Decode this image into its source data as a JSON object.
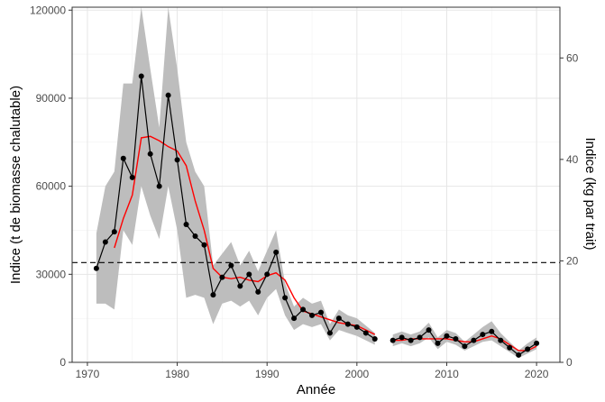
{
  "chart_data": {
    "type": "line",
    "xlabel": "Année",
    "ylabel": "Indice (t de biomasse chalutable)",
    "y2label": "Indice (kg par trait)",
    "xlim": [
      1968.3,
      2022.6
    ],
    "ylim": [
      0,
      121000
    ],
    "y2lim": [
      0,
      70
    ],
    "x_ticks": [
      "1970",
      "1980",
      "1990",
      "2000",
      "2010",
      "2020"
    ],
    "y_ticks": [
      "0",
      "30000",
      "60000",
      "90000",
      "120000"
    ],
    "y2_ticks": [
      "0",
      "20",
      "40",
      "60"
    ],
    "grid": true,
    "reference_line_y": 34000,
    "series": [
      {
        "type": "line-points",
        "color": "#000000",
        "segments": [
          [
            [
              1971,
              32000
            ],
            [
              1972,
              41000
            ],
            [
              1973,
              44500
            ],
            [
              1974,
              69500
            ],
            [
              1975,
              63000
            ],
            [
              1976,
              97500
            ],
            [
              1977,
              71000
            ],
            [
              1978,
              60000
            ],
            [
              1979,
              91000
            ],
            [
              1980,
              69000
            ],
            [
              1981,
              47000
            ],
            [
              1982,
              43000
            ],
            [
              1983,
              40000
            ],
            [
              1984,
              23000
            ],
            [
              1985,
              29000
            ],
            [
              1986,
              33000
            ],
            [
              1987,
              26000
            ],
            [
              1988,
              30000
            ],
            [
              1989,
              24000
            ],
            [
              1990,
              30000
            ],
            [
              1991,
              37500
            ],
            [
              1992,
              22000
            ],
            [
              1993,
              15000
            ],
            [
              1994,
              18000
            ],
            [
              1995,
              16000
            ],
            [
              1996,
              17000
            ],
            [
              1997,
              10000
            ],
            [
              1998,
              15000
            ],
            [
              1999,
              13000
            ],
            [
              2000,
              12000
            ],
            [
              2001,
              10000
            ],
            [
              2002,
              8000
            ]
          ],
          [
            [
              2004,
              7500
            ],
            [
              2005,
              8500
            ],
            [
              2006,
              7500
            ],
            [
              2007,
              8500
            ],
            [
              2008,
              11000
            ],
            [
              2009,
              6500
            ],
            [
              2010,
              9000
            ],
            [
              2011,
              8000
            ],
            [
              2012,
              5500
            ],
            [
              2013,
              7500
            ],
            [
              2014,
              9500
            ],
            [
              2015,
              10500
            ],
            [
              2016,
              7500
            ],
            [
              2017,
              5000
            ],
            [
              2018,
              2500
            ],
            [
              2019,
              4500
            ],
            [
              2020,
              6500
            ]
          ]
        ]
      },
      {
        "type": "smooth",
        "color": "#ff0000",
        "segments": [
          [
            [
              1973,
              39000
            ],
            [
              1974,
              49000
            ],
            [
              1975,
              57000
            ],
            [
              1976,
              76500
            ],
            [
              1977,
              77000
            ],
            [
              1978,
              75500
            ],
            [
              1979,
              73500
            ],
            [
              1980,
              72000
            ],
            [
              1981,
              67000
            ],
            [
              1982,
              55000
            ],
            [
              1983,
              45000
            ],
            [
              1984,
              32000
            ],
            [
              1985,
              29000
            ],
            [
              1986,
              28500
            ],
            [
              1987,
              29000
            ],
            [
              1988,
              28000
            ],
            [
              1989,
              27500
            ],
            [
              1990,
              29500
            ],
            [
              1991,
              30500
            ],
            [
              1992,
              28000
            ],
            [
              1993,
              22000
            ],
            [
              1994,
              17500
            ],
            [
              1995,
              16500
            ],
            [
              1996,
              15500
            ],
            [
              1997,
              14500
            ],
            [
              1998,
              13500
            ],
            [
              1999,
              13000
            ],
            [
              2000,
              12500
            ],
            [
              2001,
              11000
            ],
            [
              2002,
              9500
            ]
          ],
          [
            [
              2004,
              7500
            ],
            [
              2005,
              7500
            ],
            [
              2006,
              8000
            ],
            [
              2007,
              8000
            ],
            [
              2008,
              8000
            ],
            [
              2009,
              8000
            ],
            [
              2010,
              8000
            ],
            [
              2011,
              7500
            ],
            [
              2012,
              7000
            ],
            [
              2013,
              7000
            ],
            [
              2014,
              8000
            ],
            [
              2015,
              9000
            ],
            [
              2016,
              8000
            ],
            [
              2017,
              6000
            ],
            [
              2018,
              4000
            ],
            [
              2019,
              4000
            ],
            [
              2020,
              5500
            ]
          ]
        ]
      }
    ],
    "confidence_band": {
      "color": "#bdbdbd",
      "segments": [
        [
          [
            1971,
            20000,
            44000
          ],
          [
            1972,
            20000,
            60000
          ],
          [
            1973,
            18000,
            65000
          ],
          [
            1974,
            45000,
            95000
          ],
          [
            1975,
            40000,
            95000
          ],
          [
            1976,
            60000,
            122000
          ],
          [
            1977,
            50000,
            100000
          ],
          [
            1978,
            42000,
            80000
          ],
          [
            1979,
            60000,
            122000
          ],
          [
            1980,
            45000,
            100000
          ],
          [
            1981,
            22000,
            75000
          ],
          [
            1982,
            23000,
            65000
          ],
          [
            1983,
            22000,
            60000
          ],
          [
            1984,
            13000,
            33000
          ],
          [
            1985,
            20000,
            37000
          ],
          [
            1986,
            21000,
            41000
          ],
          [
            1987,
            19000,
            33000
          ],
          [
            1988,
            21000,
            38000
          ],
          [
            1989,
            16000,
            31000
          ],
          [
            1990,
            22000,
            38000
          ],
          [
            1991,
            25000,
            45000
          ],
          [
            1992,
            16000,
            27000
          ],
          [
            1993,
            11000,
            19000
          ],
          [
            1994,
            13000,
            22000
          ],
          [
            1995,
            12000,
            20000
          ],
          [
            1996,
            13000,
            21000
          ],
          [
            1997,
            7500,
            13000
          ],
          [
            1998,
            11000,
            18000
          ],
          [
            1999,
            10000,
            16000
          ],
          [
            2000,
            9000,
            15000
          ],
          [
            2001,
            7500,
            12500
          ],
          [
            2002,
            6000,
            10000
          ]
        ],
        [
          [
            2004,
            5500,
            9500
          ],
          [
            2005,
            6500,
            10500
          ],
          [
            2006,
            5500,
            9500
          ],
          [
            2007,
            6500,
            10500
          ],
          [
            2008,
            8500,
            13500
          ],
          [
            2009,
            4500,
            8500
          ],
          [
            2010,
            7000,
            11000
          ],
          [
            2011,
            6000,
            10000
          ],
          [
            2012,
            4000,
            7000
          ],
          [
            2013,
            5500,
            9500
          ],
          [
            2014,
            7000,
            12000
          ],
          [
            2015,
            7500,
            14000
          ],
          [
            2016,
            5500,
            10000
          ],
          [
            2017,
            3500,
            7000
          ],
          [
            2018,
            1500,
            4000
          ],
          [
            2019,
            3000,
            6500
          ],
          [
            2020,
            4500,
            8500
          ]
        ]
      ]
    }
  }
}
